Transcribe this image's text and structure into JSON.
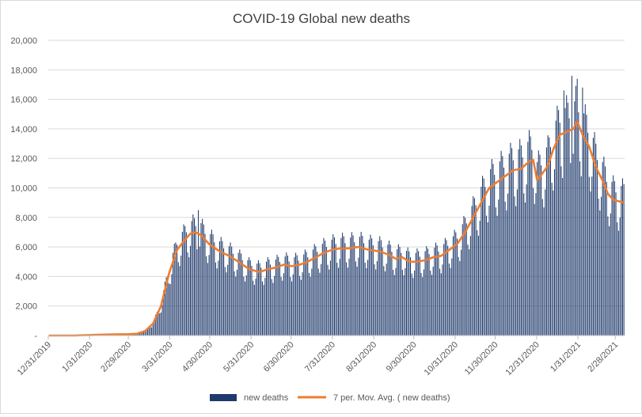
{
  "chart_data": {
    "type": "bar",
    "title": "COVID-19 Global  new deaths",
    "xlabel": "",
    "ylabel": "",
    "ylim": [
      0,
      20000
    ],
    "y_ticks": [
      "-",
      "2,000",
      "4,000",
      "6,000",
      "8,000",
      "10,000",
      "12,000",
      "14,000",
      "16,000",
      "18,000",
      "20,000"
    ],
    "x_tick_labels": [
      "12/31/2019",
      "1/31/2020",
      "2/29/2020",
      "3/31/2020",
      "4/30/2020",
      "5/31/2020",
      "6/30/2020",
      "7/31/2020",
      "8/31/2020",
      "9/30/2020",
      "10/31/2020",
      "11/30/2020",
      "12/31/2020",
      "1/31/2021",
      "2/28/2021"
    ],
    "x_tick_day_index": [
      0,
      31,
      60,
      91,
      121,
      152,
      182,
      213,
      244,
      274,
      305,
      335,
      366,
      397,
      425
    ],
    "grid": true,
    "legend_position": "bottom",
    "colors": {
      "bars": "#1f3a6b",
      "line": "#ed7d31",
      "grid": "#d9d9d9",
      "axis": "#bfbfbf",
      "text": "#595959"
    },
    "series": [
      {
        "name": "new deaths",
        "type": "bar",
        "weekly_average_anchors": [
          [
            0,
            0
          ],
          [
            20,
            0
          ],
          [
            25,
            20
          ],
          [
            31,
            30
          ],
          [
            40,
            60
          ],
          [
            50,
            80
          ],
          [
            60,
            90
          ],
          [
            66,
            120
          ],
          [
            72,
            300
          ],
          [
            78,
            800
          ],
          [
            84,
            2000
          ],
          [
            90,
            4200
          ],
          [
            96,
            5800
          ],
          [
            102,
            6500
          ],
          [
            106,
            6900
          ],
          [
            110,
            7000
          ],
          [
            114,
            6800
          ],
          [
            120,
            6200
          ],
          [
            128,
            5700
          ],
          [
            135,
            5400
          ],
          [
            142,
            5000
          ],
          [
            150,
            4500
          ],
          [
            158,
            4300
          ],
          [
            164,
            4500
          ],
          [
            170,
            4600
          ],
          [
            176,
            4800
          ],
          [
            182,
            4700
          ],
          [
            188,
            4800
          ],
          [
            194,
            5000
          ],
          [
            200,
            5300
          ],
          [
            206,
            5600
          ],
          [
            212,
            5800
          ],
          [
            218,
            5900
          ],
          [
            224,
            5900
          ],
          [
            232,
            6000
          ],
          [
            240,
            5800
          ],
          [
            248,
            5700
          ],
          [
            254,
            5500
          ],
          [
            260,
            5200
          ],
          [
            265,
            5300
          ],
          [
            270,
            5000
          ],
          [
            276,
            5000
          ],
          [
            282,
            5100
          ],
          [
            288,
            5300
          ],
          [
            294,
            5400
          ],
          [
            300,
            5800
          ],
          [
            306,
            6200
          ],
          [
            312,
            7000
          ],
          [
            318,
            8000
          ],
          [
            324,
            9000
          ],
          [
            330,
            10000
          ],
          [
            336,
            10400
          ],
          [
            342,
            10800
          ],
          [
            348,
            11200
          ],
          [
            354,
            11300
          ],
          [
            360,
            11800
          ],
          [
            363,
            11900
          ],
          [
            366,
            10500
          ],
          [
            370,
            11000
          ],
          [
            374,
            11500
          ],
          [
            378,
            12600
          ],
          [
            383,
            13600
          ],
          [
            388,
            13800
          ],
          [
            393,
            14000
          ],
          [
            396,
            14500
          ],
          [
            400,
            13600
          ],
          [
            405,
            12800
          ],
          [
            410,
            11400
          ],
          [
            415,
            10500
          ],
          [
            419,
            9600
          ],
          [
            423,
            9200
          ],
          [
            427,
            9100
          ],
          [
            431,
            9000
          ]
        ],
        "weekday_factors": [
          0.78,
          0.88,
          1.12,
          1.18,
          1.14,
          1.06,
          0.84
        ],
        "peak_days": {
          "112": 8500,
          "386": 16600,
          "392": 17600,
          "396": 17400,
          "400": 16800
        }
      },
      {
        "name": "7 per. Mov. Avg. ( new deaths)",
        "type": "line",
        "points": [
          [
            0,
            0
          ],
          [
            20,
            0
          ],
          [
            25,
            20
          ],
          [
            31,
            30
          ],
          [
            40,
            60
          ],
          [
            50,
            80
          ],
          [
            60,
            90
          ],
          [
            66,
            120
          ],
          [
            72,
            300
          ],
          [
            78,
            800
          ],
          [
            84,
            2000
          ],
          [
            90,
            4200
          ],
          [
            96,
            5800
          ],
          [
            102,
            6500
          ],
          [
            106,
            6900
          ],
          [
            110,
            7000
          ],
          [
            114,
            6800
          ],
          [
            120,
            6200
          ],
          [
            128,
            5700
          ],
          [
            135,
            5400
          ],
          [
            142,
            5000
          ],
          [
            150,
            4500
          ],
          [
            158,
            4300
          ],
          [
            164,
            4500
          ],
          [
            170,
            4600
          ],
          [
            176,
            4800
          ],
          [
            182,
            4700
          ],
          [
            188,
            4800
          ],
          [
            194,
            5000
          ],
          [
            200,
            5300
          ],
          [
            206,
            5600
          ],
          [
            212,
            5800
          ],
          [
            218,
            5900
          ],
          [
            224,
            5900
          ],
          [
            232,
            6000
          ],
          [
            240,
            5800
          ],
          [
            248,
            5700
          ],
          [
            254,
            5500
          ],
          [
            260,
            5200
          ],
          [
            265,
            5300
          ],
          [
            270,
            5000
          ],
          [
            276,
            5000
          ],
          [
            282,
            5100
          ],
          [
            288,
            5300
          ],
          [
            294,
            5400
          ],
          [
            300,
            5800
          ],
          [
            306,
            6200
          ],
          [
            312,
            7000
          ],
          [
            318,
            8000
          ],
          [
            324,
            9000
          ],
          [
            330,
            10000
          ],
          [
            336,
            10400
          ],
          [
            342,
            10800
          ],
          [
            348,
            11200
          ],
          [
            354,
            11300
          ],
          [
            360,
            11800
          ],
          [
            363,
            11900
          ],
          [
            366,
            10500
          ],
          [
            370,
            11000
          ],
          [
            374,
            11500
          ],
          [
            378,
            12600
          ],
          [
            383,
            13600
          ],
          [
            388,
            13800
          ],
          [
            393,
            14000
          ],
          [
            396,
            14500
          ],
          [
            400,
            13600
          ],
          [
            405,
            12800
          ],
          [
            410,
            11400
          ],
          [
            415,
            10500
          ],
          [
            419,
            9600
          ],
          [
            423,
            9200
          ],
          [
            427,
            9100
          ],
          [
            431,
            9000
          ]
        ]
      }
    ],
    "legend": [
      {
        "label": "new deaths",
        "kind": "bar"
      },
      {
        "label": "7 per. Mov. Avg. ( new deaths)",
        "kind": "line"
      }
    ]
  }
}
